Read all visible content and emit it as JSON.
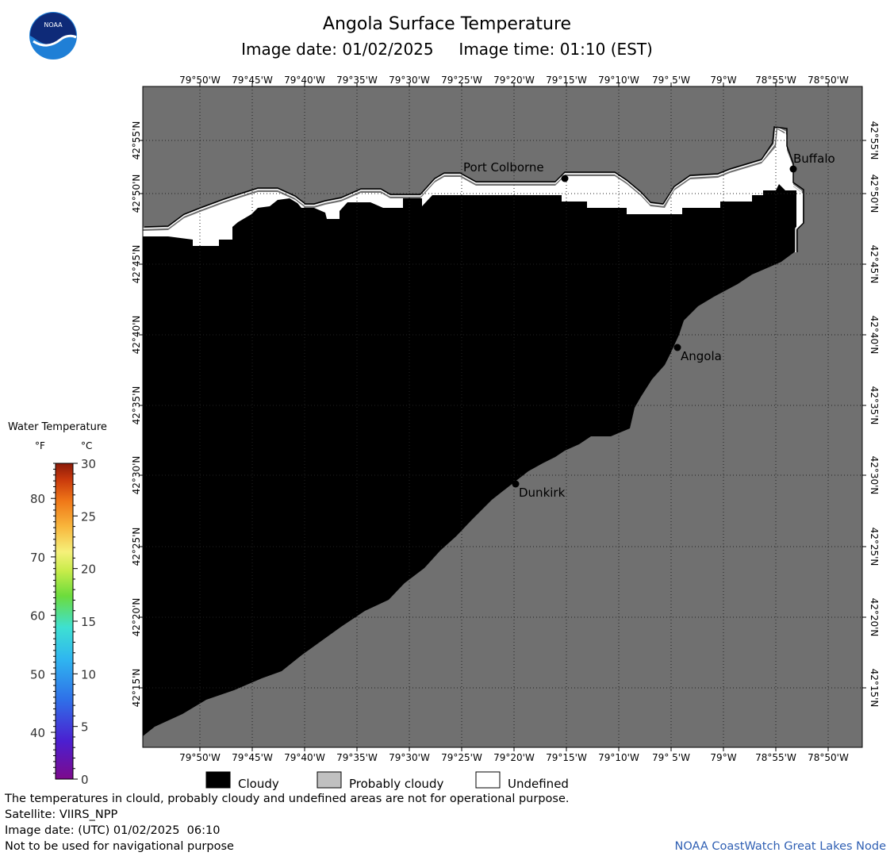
{
  "header": {
    "title": "Angola Surface Temperature",
    "date_label": "Image date:",
    "date_value": "01/02/2025",
    "time_label": "Image time:",
    "time_value": "01:10 (EST)"
  },
  "logo": {
    "text": "NOAA",
    "icon": "noaa-logo-icon"
  },
  "map": {
    "lon_labels": [
      "79°50'W",
      "79°45'W",
      "79°40'W",
      "79°35'W",
      "79°30'W",
      "79°25'W",
      "79°20'W",
      "79°15'W",
      "79°10'W",
      "79° 5'W",
      "79°W",
      "78°55'W",
      "78°50'W"
    ],
    "lat_labels": [
      "42°55'N",
      "42°50'N",
      "42°45'N",
      "42°40'N",
      "42°35'N",
      "42°30'N",
      "42°25'N",
      "42°20'N",
      "42°15'N"
    ],
    "places": [
      {
        "name": "Port Colborne"
      },
      {
        "name": "Buffalo"
      },
      {
        "name": "Angola"
      },
      {
        "name": "Dunkirk"
      }
    ],
    "colors": {
      "land": "#707070",
      "cloudy": "#000000",
      "probably_cloudy": "#c0c0c0",
      "undefined": "#ffffff",
      "grid": "#333333"
    }
  },
  "legend": {
    "title": "Water Temperature",
    "unit_f": "°F",
    "unit_c": "°C",
    "f_labels": [
      "80",
      "70",
      "60",
      "50",
      "40"
    ],
    "c_labels": [
      "30",
      "25",
      "20",
      "15",
      "10",
      "5",
      "0"
    ]
  },
  "key": {
    "cloudy": "Cloudy",
    "probably_cloudy": "Probably cloudy",
    "undefined": "Undefined"
  },
  "footer": {
    "line1": "The temperatures in clould, probably cloudy and undefined areas are not for operational purpose.",
    "line2": "Satellite: VIIRS_NPP",
    "line3": "Image date: (UTC) 01/02/2025  06:10",
    "line4": "Not to be used for navigational purpose",
    "credit": "NOAA CoastWatch Great Lakes Node"
  }
}
